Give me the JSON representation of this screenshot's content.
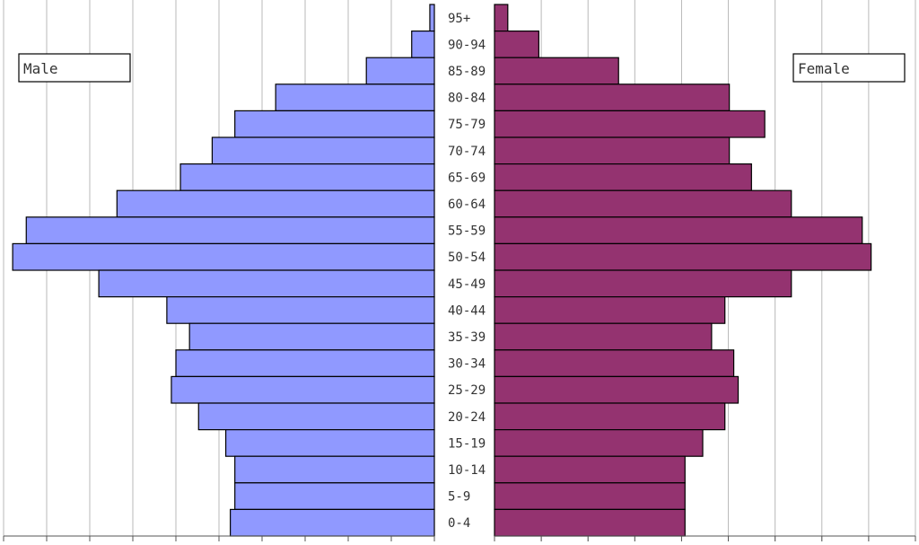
{
  "chart_data": {
    "type": "bar",
    "orientation": "horizontal",
    "layout": "population-pyramid",
    "categories": [
      "95+",
      "90-94",
      "85-89",
      "80-84",
      "75-79",
      "70-74",
      "65-69",
      "60-64",
      "55-59",
      "50-54",
      "45-49",
      "40-44",
      "35-39",
      "30-34",
      "25-29",
      "20-24",
      "15-19",
      "10-14",
      "5-9",
      "0-4"
    ],
    "series": [
      {
        "name": "Male",
        "color": "#9099ff",
        "values": [
          0.1,
          0.5,
          1.5,
          3.5,
          4.4,
          4.9,
          5.6,
          7.0,
          9.0,
          9.3,
          7.4,
          5.9,
          5.4,
          5.7,
          5.8,
          5.2,
          4.6,
          4.4,
          4.4,
          4.5
        ]
      },
      {
        "name": "Female",
        "color": "#943370",
        "values": [
          0.3,
          1.0,
          2.8,
          5.3,
          6.1,
          5.3,
          5.8,
          6.7,
          8.3,
          8.5,
          6.7,
          5.2,
          4.9,
          5.4,
          5.5,
          5.2,
          4.7,
          4.3,
          4.3,
          4.3
        ]
      }
    ],
    "xlim": [
      0,
      9.5
    ],
    "grid": true,
    "legend": [
      "top-left",
      "top-right"
    ]
  },
  "legend": {
    "male_label": "Male",
    "female_label": "Female"
  }
}
